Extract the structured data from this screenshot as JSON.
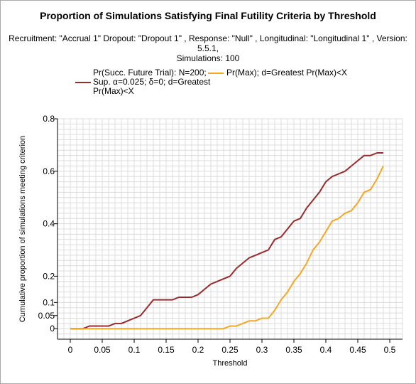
{
  "chart_data": {
    "type": "line",
    "title": "Proportion of Simulations Satisfying Final Futility Criteria by Threshold",
    "subtitle_lines": [
      "Recruitment: \"Accrual 1\" Dropout: \"Dropout 1\" , Response: \"Null\" , Longitudinal: \"Longitudinal 1\" , Version: 5.5.1,",
      "Simulations: 100"
    ],
    "xlabel": "Threshold",
    "ylabel": "Cumulative proportion of simulations meeting criterion",
    "xlim": [
      -0.02,
      0.52
    ],
    "ylim": [
      -0.04,
      0.8
    ],
    "xticks": [
      0,
      0.05,
      0.1,
      0.15,
      0.2,
      0.25,
      0.3,
      0.35,
      0.4,
      0.45,
      0.5
    ],
    "xtick_labels": [
      "0",
      "0.05",
      "0.1",
      "0.15",
      "0.2",
      "0.25",
      "0.3",
      "0.35",
      "0.4",
      "0.45",
      "0.5"
    ],
    "yticks": [
      0,
      0.05,
      0.1,
      0.2,
      0.4,
      0.6,
      0.8
    ],
    "ytick_labels": [
      "0",
      "0.05",
      "0.1",
      "0.2",
      "0.4",
      "0.6",
      "0.8"
    ],
    "grid": true,
    "legend_position": "top",
    "series": [
      {
        "name": "Pr(Succ. Future Trial): N=200; Sup. α=0.025; δ=0; d=Greatest Pr(Max)<X",
        "color": "#9b2a2a",
        "x": [
          0,
          0.01,
          0.02,
          0.03,
          0.04,
          0.05,
          0.06,
          0.07,
          0.08,
          0.09,
          0.1,
          0.11,
          0.12,
          0.13,
          0.14,
          0.15,
          0.16,
          0.17,
          0.18,
          0.19,
          0.2,
          0.21,
          0.22,
          0.23,
          0.24,
          0.25,
          0.26,
          0.27,
          0.28,
          0.29,
          0.3,
          0.31,
          0.32,
          0.33,
          0.34,
          0.35,
          0.36,
          0.37,
          0.38,
          0.39,
          0.4,
          0.41,
          0.42,
          0.43,
          0.44,
          0.45,
          0.46,
          0.47,
          0.48,
          0.49
        ],
        "y": [
          0,
          0,
          0,
          0.01,
          0.01,
          0.01,
          0.01,
          0.02,
          0.02,
          0.03,
          0.04,
          0.05,
          0.08,
          0.11,
          0.11,
          0.11,
          0.11,
          0.12,
          0.12,
          0.12,
          0.13,
          0.15,
          0.17,
          0.18,
          0.19,
          0.2,
          0.23,
          0.25,
          0.27,
          0.28,
          0.29,
          0.3,
          0.34,
          0.35,
          0.38,
          0.41,
          0.42,
          0.46,
          0.49,
          0.52,
          0.56,
          0.58,
          0.59,
          0.6,
          0.62,
          0.64,
          0.66,
          0.66,
          0.67,
          0.67
        ]
      },
      {
        "name": "Pr(Max); d=Greatest Pr(Max)<X",
        "color": "#f5a623",
        "x": [
          0,
          0.01,
          0.02,
          0.03,
          0.04,
          0.05,
          0.06,
          0.07,
          0.08,
          0.09,
          0.1,
          0.11,
          0.12,
          0.13,
          0.14,
          0.15,
          0.16,
          0.17,
          0.18,
          0.19,
          0.2,
          0.21,
          0.22,
          0.23,
          0.24,
          0.25,
          0.26,
          0.27,
          0.28,
          0.29,
          0.3,
          0.31,
          0.32,
          0.33,
          0.34,
          0.35,
          0.36,
          0.37,
          0.38,
          0.39,
          0.4,
          0.41,
          0.42,
          0.43,
          0.44,
          0.45,
          0.46,
          0.47,
          0.48,
          0.49
        ],
        "y": [
          0,
          0,
          0,
          0,
          0,
          0,
          0,
          0,
          0,
          0,
          0,
          0,
          0,
          0,
          0,
          0,
          0,
          0,
          0,
          0,
          0,
          0,
          0,
          0,
          0,
          0.01,
          0.01,
          0.02,
          0.03,
          0.03,
          0.04,
          0.04,
          0.07,
          0.11,
          0.14,
          0.18,
          0.21,
          0.25,
          0.3,
          0.33,
          0.37,
          0.41,
          0.42,
          0.44,
          0.45,
          0.48,
          0.52,
          0.53,
          0.57,
          0.62
        ]
      }
    ],
    "legend": {
      "item1_lines": [
        "Pr(Succ. Future Trial): N=200;",
        "Sup. α=0.025; δ=0; d=Greatest",
        "Pr(Max)<X"
      ],
      "item2_text": "Pr(Max); d=Greatest Pr(Max)<X"
    }
  }
}
